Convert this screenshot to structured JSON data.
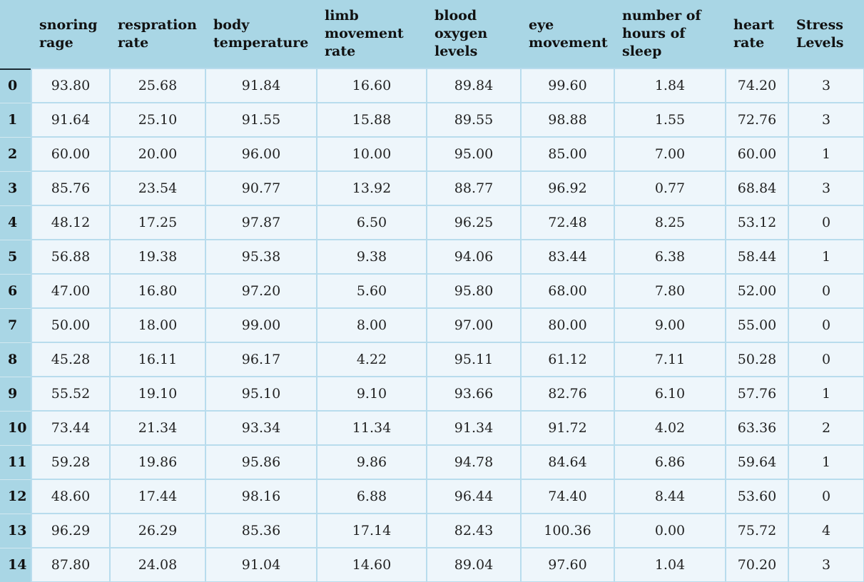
{
  "columns": [
    [
      "snoring",
      "rage"
    ],
    [
      "respration",
      "rate"
    ],
    [
      "body",
      "temperature"
    ],
    [
      "limb",
      "movement",
      "rate"
    ],
    [
      "blood",
      "oxygen",
      "levels"
    ],
    [
      "eye",
      "movement"
    ],
    [
      "number of",
      "hours of sleep"
    ],
    [
      "heart",
      "rate"
    ],
    [
      "Stress",
      "Levels"
    ]
  ],
  "index": [
    "0",
    "1",
    "2",
    "3",
    "4",
    "5",
    "6",
    "7",
    "8",
    "9",
    "10",
    "11",
    "12",
    "13",
    "14"
  ],
  "rows": [
    [
      "93.80",
      "25.68",
      "91.84",
      "16.60",
      "89.84",
      "99.60",
      "1.84",
      "74.20",
      "3"
    ],
    [
      "91.64",
      "25.10",
      "91.55",
      "15.88",
      "89.55",
      "98.88",
      "1.55",
      "72.76",
      "3"
    ],
    [
      "60.00",
      "20.00",
      "96.00",
      "10.00",
      "95.00",
      "85.00",
      "7.00",
      "60.00",
      "1"
    ],
    [
      "85.76",
      "23.54",
      "90.77",
      "13.92",
      "88.77",
      "96.92",
      "0.77",
      "68.84",
      "3"
    ],
    [
      "48.12",
      "17.25",
      "97.87",
      "6.50",
      "96.25",
      "72.48",
      "8.25",
      "53.12",
      "0"
    ],
    [
      "56.88",
      "19.38",
      "95.38",
      "9.38",
      "94.06",
      "83.44",
      "6.38",
      "58.44",
      "1"
    ],
    [
      "47.00",
      "16.80",
      "97.20",
      "5.60",
      "95.80",
      "68.00",
      "7.80",
      "52.00",
      "0"
    ],
    [
      "50.00",
      "18.00",
      "99.00",
      "8.00",
      "97.00",
      "80.00",
      "9.00",
      "55.00",
      "0"
    ],
    [
      "45.28",
      "16.11",
      "96.17",
      "4.22",
      "95.11",
      "61.12",
      "7.11",
      "50.28",
      "0"
    ],
    [
      "55.52",
      "19.10",
      "95.10",
      "9.10",
      "93.66",
      "82.76",
      "6.10",
      "57.76",
      "1"
    ],
    [
      "73.44",
      "21.34",
      "93.34",
      "11.34",
      "91.34",
      "91.72",
      "4.02",
      "63.36",
      "2"
    ],
    [
      "59.28",
      "19.86",
      "95.86",
      "9.86",
      "94.78",
      "84.64",
      "6.86",
      "59.64",
      "1"
    ],
    [
      "48.60",
      "17.44",
      "98.16",
      "6.88",
      "96.44",
      "74.40",
      "8.44",
      "53.60",
      "0"
    ],
    [
      "96.29",
      "26.29",
      "85.36",
      "17.14",
      "82.43",
      "100.36",
      "0.00",
      "75.72",
      "4"
    ],
    [
      "87.80",
      "24.08",
      "91.04",
      "14.60",
      "89.04",
      "97.60",
      "1.04",
      "70.20",
      "3"
    ]
  ],
  "colors": {
    "header_bg": "#a9d6e5",
    "cell_bg": "#eef6fb",
    "grid": "#b8dced"
  }
}
